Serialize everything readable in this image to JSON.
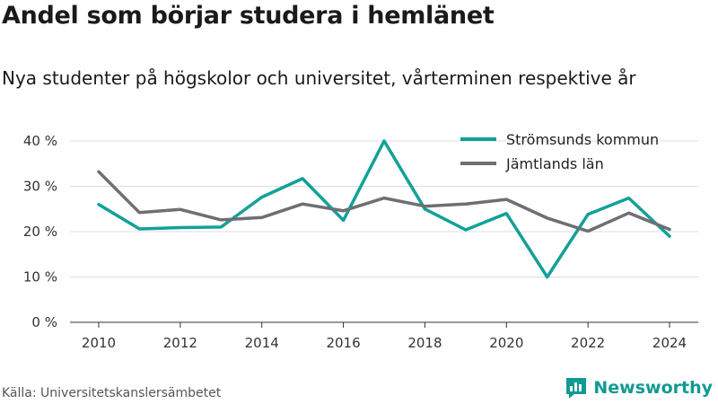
{
  "header": {
    "title": "Andel som börjar studera i hemlänet",
    "subtitle": "Nya studenter på högskolor och universitet, vårterminen respektive år"
  },
  "footer": {
    "source": "Källa: Universitetskanslersämbetet",
    "brand_name": "Newsworthy",
    "brand_icon": "newsworthy-logo-icon",
    "brand_color": "#119a92"
  },
  "chart_data": {
    "type": "line",
    "x": [
      2010,
      2011,
      2012,
      2013,
      2014,
      2015,
      2016,
      2017,
      2018,
      2019,
      2020,
      2021,
      2022,
      2023,
      2024
    ],
    "x_ticks": [
      "2010",
      "2012",
      "2014",
      "2016",
      "2018",
      "2020",
      "2022",
      "2024"
    ],
    "y_ticks": [
      "0 %",
      "10 %",
      "20 %",
      "30 %",
      "40 %"
    ],
    "y_tick_values": [
      0,
      10,
      20,
      30,
      40
    ],
    "ylim": [
      0,
      40
    ],
    "xlim": [
      2010,
      2024
    ],
    "grid": true,
    "legend_position": "top-right",
    "series": [
      {
        "name": "Strömsunds kommun",
        "color": "#11a198",
        "values": [
          26,
          20.6,
          20.9,
          21,
          27.6,
          31.7,
          22.5,
          40,
          25,
          20.4,
          24,
          10,
          23.8,
          27.4,
          19
        ]
      },
      {
        "name": "Jämtlands län",
        "color": "#6e6e74",
        "values": [
          33.2,
          24.2,
          24.9,
          22.6,
          23.1,
          26.1,
          24.6,
          27.4,
          25.6,
          26.1,
          27.1,
          23,
          20.1,
          24.1,
          20.5
        ]
      }
    ]
  }
}
